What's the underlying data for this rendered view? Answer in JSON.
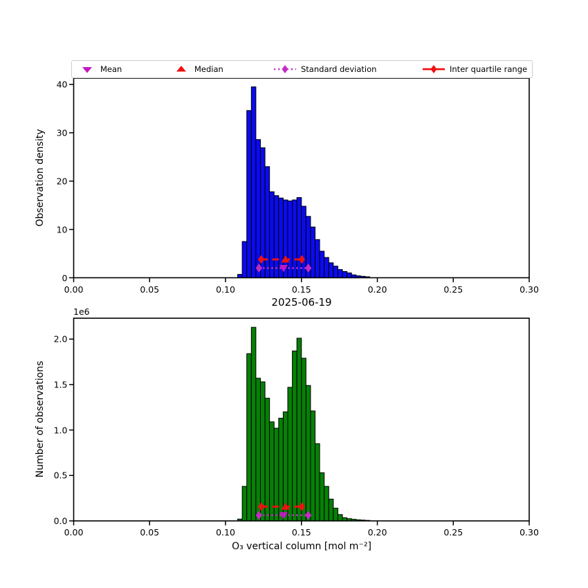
{
  "legend": {
    "items": [
      {
        "label": "Mean",
        "marker": "triangle-down-icon",
        "color": "#c217c2"
      },
      {
        "label": "Median",
        "marker": "triangle-up-icon",
        "color": "#ee1111"
      },
      {
        "label": "Standard deviation",
        "marker": "diamond-dotted-line-icon",
        "color": "#c22cc2"
      },
      {
        "label": "Inter quartile range",
        "marker": "diamond-dashed-line-icon",
        "color": "#ee1111"
      }
    ]
  },
  "chart_data": [
    {
      "type": "bar",
      "subtype": "histogram",
      "title": "",
      "xlabel": "",
      "ylabel": "Observation density",
      "bar_color": "#0b0bee",
      "bar_edge_color": "#000000",
      "xlim": [
        0.0,
        0.3
      ],
      "ylim": [
        0.0,
        41.3
      ],
      "grid": false,
      "bin_width": 0.003,
      "bin_left_edges": [
        0.105,
        0.108,
        0.111,
        0.114,
        0.117,
        0.12,
        0.123,
        0.126,
        0.129,
        0.132,
        0.135,
        0.138,
        0.141,
        0.144,
        0.147,
        0.15,
        0.153,
        0.156,
        0.159,
        0.162,
        0.165,
        0.168,
        0.171,
        0.174,
        0.177,
        0.18,
        0.183,
        0.186,
        0.189,
        0.192
      ],
      "values": [
        0,
        0.7,
        7.5,
        34.6,
        39.5,
        28.6,
        26.9,
        23.0,
        17.8,
        17.0,
        16.5,
        16.1,
        15.9,
        16.1,
        16.6,
        14.8,
        12.7,
        10.5,
        7.9,
        5.5,
        4.2,
        3.1,
        2.4,
        1.7,
        1.3,
        1.0,
        0.6,
        0.4,
        0.3,
        0.2
      ],
      "x_ticks": [
        0.0,
        0.05,
        0.1,
        0.15,
        0.2,
        0.25,
        0.3
      ],
      "x_tick_labels": [
        "0.00",
        "0.05",
        "0.10",
        "0.15",
        "0.20",
        "0.25",
        "0.30"
      ],
      "y_ticks": [
        0,
        10,
        20,
        30,
        40
      ],
      "y_tick_labels": [
        "0",
        "10",
        "20",
        "30",
        "40"
      ],
      "y_offset_label": "",
      "stats": {
        "mean": 0.1383,
        "median": 0.1394,
        "std_low": 0.122,
        "std_high": 0.1545,
        "q1": 0.1235,
        "q3": 0.1503,
        "iqr_line_y": 3.8,
        "std_line_y": 2.0
      }
    },
    {
      "type": "bar",
      "subtype": "histogram",
      "title": "2025-06-19",
      "xlabel": "O₃ vertical column [mol m⁻²]",
      "ylabel": "Number of observations",
      "bar_color": "#068006",
      "bar_edge_color": "#000000",
      "xlim": [
        0.0,
        0.3
      ],
      "ylim": [
        0.0,
        2230000
      ],
      "grid": false,
      "bin_width": 0.003,
      "bin_left_edges": [
        0.105,
        0.108,
        0.111,
        0.114,
        0.117,
        0.12,
        0.123,
        0.126,
        0.129,
        0.132,
        0.135,
        0.138,
        0.141,
        0.144,
        0.147,
        0.15,
        0.153,
        0.156,
        0.159,
        0.162,
        0.165,
        0.168,
        0.171,
        0.174,
        0.177,
        0.18,
        0.183,
        0.186,
        0.189,
        0.192
      ],
      "values": [
        0,
        20000,
        380000,
        1840000,
        2130000,
        1570000,
        1530000,
        1350000,
        1090000,
        1020000,
        1130000,
        1200000,
        1470000,
        1870000,
        2010000,
        1790000,
        1490000,
        1210000,
        850000,
        530000,
        380000,
        240000,
        140000,
        70000,
        35000,
        25000,
        18000,
        12000,
        9000,
        6000
      ],
      "x_ticks": [
        0.0,
        0.05,
        0.1,
        0.15,
        0.2,
        0.25,
        0.3
      ],
      "x_tick_labels": [
        "0.00",
        "0.05",
        "0.10",
        "0.15",
        "0.20",
        "0.25",
        "0.30"
      ],
      "y_ticks": [
        0,
        500000,
        1000000,
        1500000,
        2000000
      ],
      "y_tick_labels": [
        "0.0",
        "0.5",
        "1.0",
        "1.5",
        "2.0"
      ],
      "y_offset_label": "1e6",
      "stats": {
        "mean": 0.1383,
        "median": 0.1394,
        "std_low": 0.122,
        "std_high": 0.1545,
        "q1": 0.1235,
        "q3": 0.1503,
        "iqr_line_y": 157000,
        "std_line_y": 62000
      }
    }
  ]
}
